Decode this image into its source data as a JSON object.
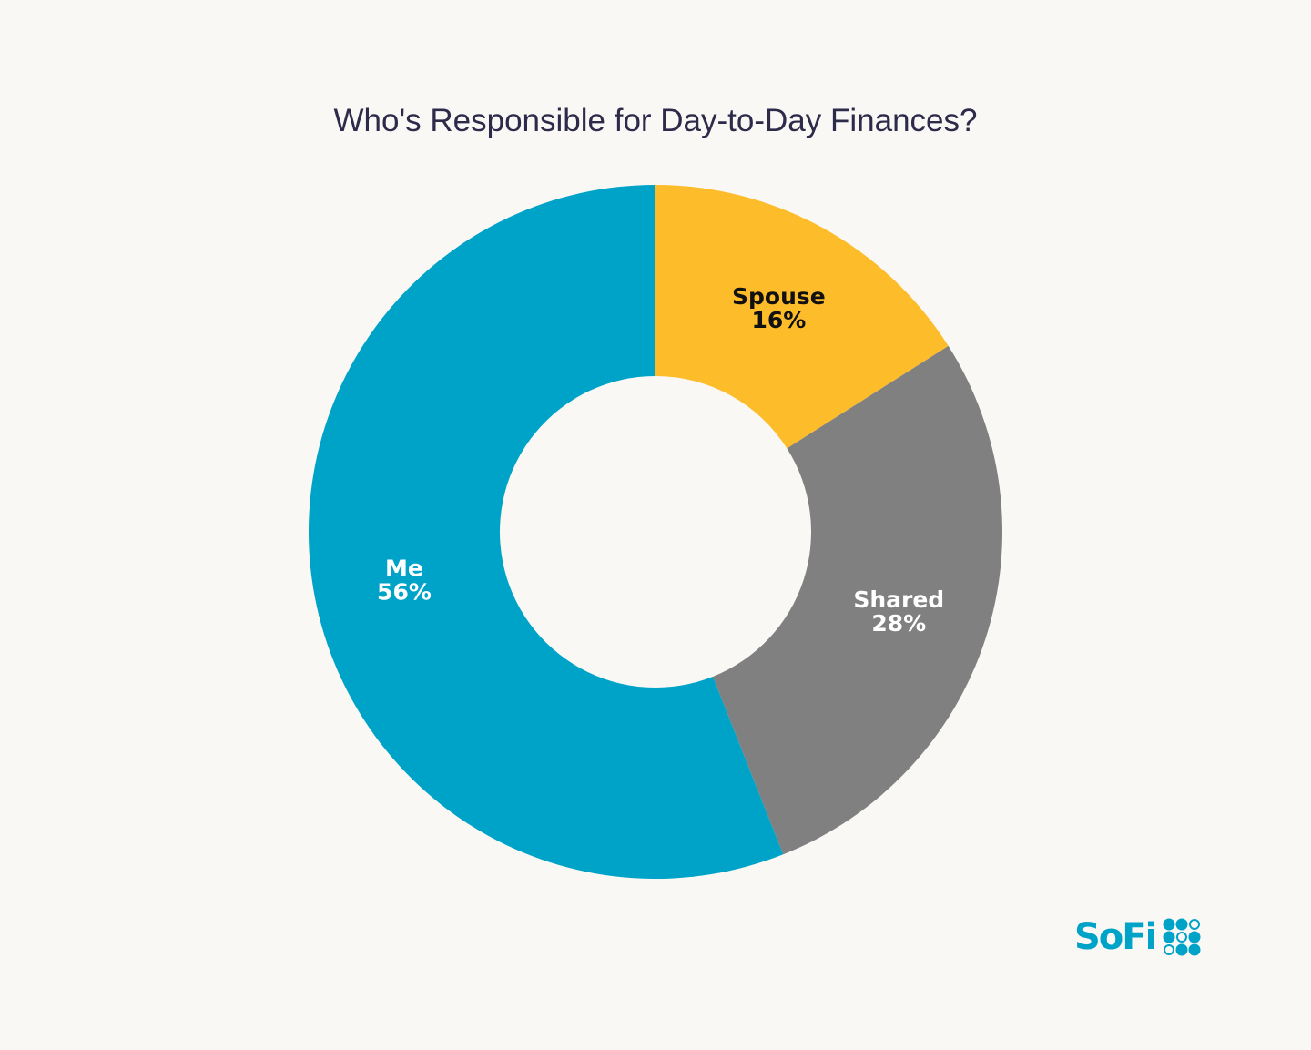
{
  "chart_data": {
    "type": "pie",
    "donut": true,
    "title": "Who's Responsible for Day-to-Day Finances?",
    "start": "top",
    "direction": "clockwise",
    "slices": [
      {
        "label": "Spouse",
        "value": 16,
        "display": "16%",
        "color": "#fdbc29",
        "text_color": "#111111"
      },
      {
        "label": "Shared",
        "value": 28,
        "display": "28%",
        "color": "#808080",
        "text_color": "#ffffff"
      },
      {
        "label": "Me",
        "value": 56,
        "display": "56%",
        "color": "#00a3c8",
        "text_color": "#ffffff"
      }
    ]
  },
  "brand": {
    "logo_text": "SoFi",
    "color": "#00a3c8"
  }
}
